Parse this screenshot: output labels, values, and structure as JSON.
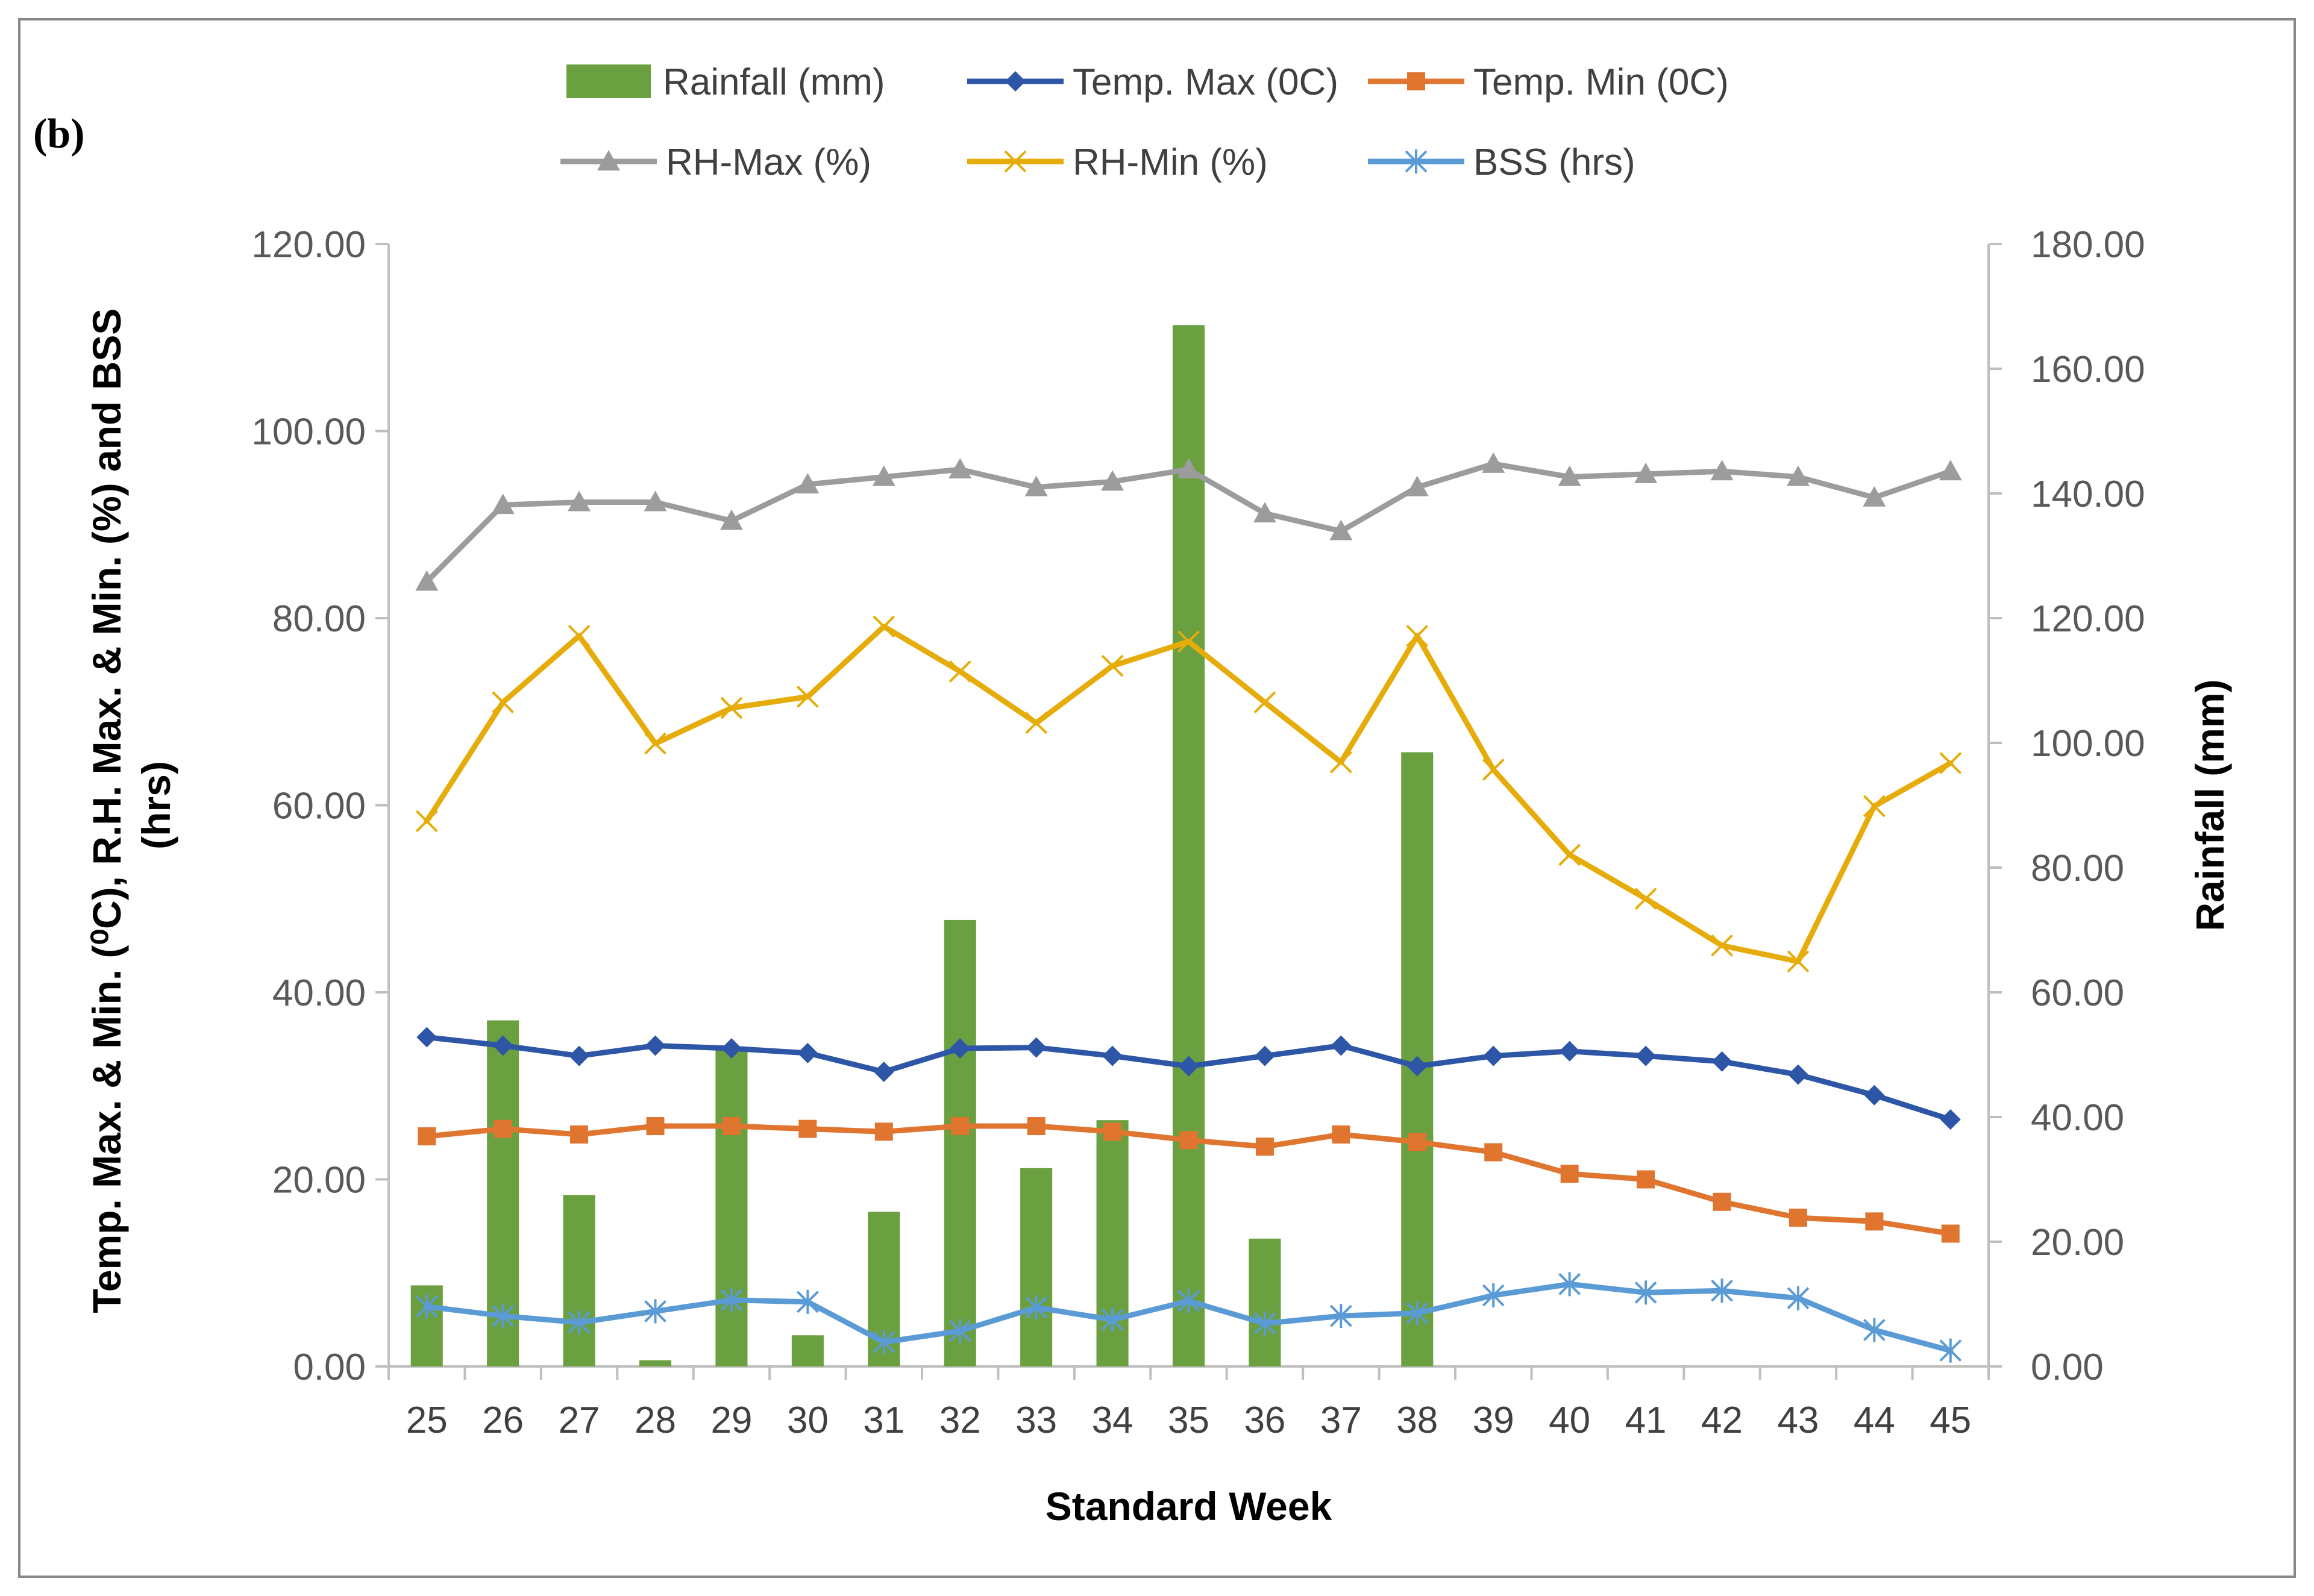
{
  "panel_label": "(b)",
  "colors": {
    "rainfall": "#6aa040",
    "temp_max": "#2e56a6",
    "temp_min": "#e07530",
    "rh_max": "#9c9c9c",
    "rh_min": "#e5ac0a",
    "bss": "#5b9bd5",
    "axis": "#bfbfbf",
    "tick_text": "#595959"
  },
  "chart_data": {
    "type": "bar-line-combo",
    "xlabel": "Standard Week",
    "ylabel_left": "Temp. Max. & Min. (⁰C), R.H. Max. & Min. (%) and BSS (hrs)",
    "ylabel_left_lines": [
      "Temp. Max. & Min. (⁰C), R.H. Max. & Min. (%) and BSS",
      "(hrs)"
    ],
    "ylabel_right": "Rainfall (mm)",
    "ylim_left": [
      0,
      120
    ],
    "ylim_right": [
      0,
      180
    ],
    "yticks_left": [
      "0.00",
      "20.00",
      "40.00",
      "60.00",
      "80.00",
      "100.00",
      "120.00"
    ],
    "yticks_right": [
      "0.00",
      "20.00",
      "40.00",
      "60.00",
      "80.00",
      "100.00",
      "120.00",
      "140.00",
      "160.00",
      "180.00"
    ],
    "categories": [
      "25",
      "26",
      "27",
      "28",
      "29",
      "30",
      "31",
      "32",
      "33",
      "34",
      "35",
      "36",
      "37",
      "38",
      "39",
      "40",
      "41",
      "42",
      "43",
      "44",
      "45"
    ],
    "bar_series": {
      "name": "Rainfall (mm)",
      "axis": "right",
      "color_key": "rainfall",
      "values": [
        13,
        55.5,
        27.5,
        1,
        51,
        5,
        24.8,
        71.6,
        31.8,
        39.5,
        167,
        20.5,
        0,
        98.5,
        0,
        0,
        0,
        0,
        0,
        0,
        0
      ]
    },
    "line_series": [
      {
        "name": "Temp. Max (0C)",
        "axis": "left",
        "color_key": "temp_max",
        "marker": "diamond",
        "values": [
          35.2,
          34.3,
          33.2,
          34.3,
          34.0,
          33.5,
          31.5,
          34.0,
          34.1,
          33.2,
          32.1,
          33.2,
          34.3,
          32.1,
          33.2,
          33.7,
          33.2,
          32.6,
          31.2,
          29.0,
          26.4
        ]
      },
      {
        "name": "Temp. Min (0C)",
        "axis": "left",
        "color_key": "temp_min",
        "marker": "square",
        "values": [
          24.6,
          25.4,
          24.8,
          25.7,
          25.7,
          25.4,
          25.1,
          25.7,
          25.7,
          25.1,
          24.2,
          23.5,
          24.8,
          24.0,
          22.9,
          20.6,
          20.0,
          17.6,
          15.9,
          15.5,
          14.2
        ]
      },
      {
        "name": "RH-Max (%)",
        "axis": "left",
        "color_key": "rh_max",
        "marker": "triangle",
        "values": [
          83.9,
          92.1,
          92.4,
          92.4,
          90.4,
          94.3,
          95.1,
          95.9,
          94.0,
          94.6,
          95.9,
          91.2,
          89.3,
          94.0,
          96.5,
          95.1,
          95.4,
          95.7,
          95.1,
          92.9,
          95.7
        ]
      },
      {
        "name": "RH-Min (%)",
        "axis": "left",
        "color_key": "rh_min",
        "marker": "x",
        "values": [
          58.3,
          71.0,
          78.1,
          66.6,
          70.4,
          71.6,
          79.1,
          74.3,
          68.8,
          74.9,
          77.5,
          71.0,
          64.6,
          78.1,
          63.8,
          54.7,
          50.0,
          45.0,
          43.3,
          59.9,
          64.5
        ]
      },
      {
        "name": "BSS (hrs)",
        "axis": "left",
        "color_key": "bss",
        "marker": "asterisk",
        "values": [
          6.4,
          5.4,
          4.7,
          5.9,
          7.1,
          6.9,
          2.6,
          3.8,
          6.3,
          5.0,
          7.0,
          4.6,
          5.4,
          5.7,
          7.6,
          8.8,
          7.9,
          8.1,
          7.3,
          3.9,
          1.7
        ]
      }
    ],
    "legend": [
      {
        "label": "Rainfall (mm)",
        "color_key": "rainfall",
        "kind": "bar"
      },
      {
        "label": "Temp. Max (0C)",
        "color_key": "temp_max",
        "kind": "line",
        "marker": "diamond"
      },
      {
        "label": "Temp. Min (0C)",
        "color_key": "temp_min",
        "kind": "line",
        "marker": "square"
      },
      {
        "label": "RH-Max (%)",
        "color_key": "rh_max",
        "kind": "line",
        "marker": "triangle"
      },
      {
        "label": "RH-Min (%)",
        "color_key": "rh_min",
        "kind": "line",
        "marker": "x"
      },
      {
        "label": "BSS (hrs)",
        "color_key": "bss",
        "kind": "line",
        "marker": "asterisk"
      }
    ],
    "legend_position": "top-center"
  }
}
